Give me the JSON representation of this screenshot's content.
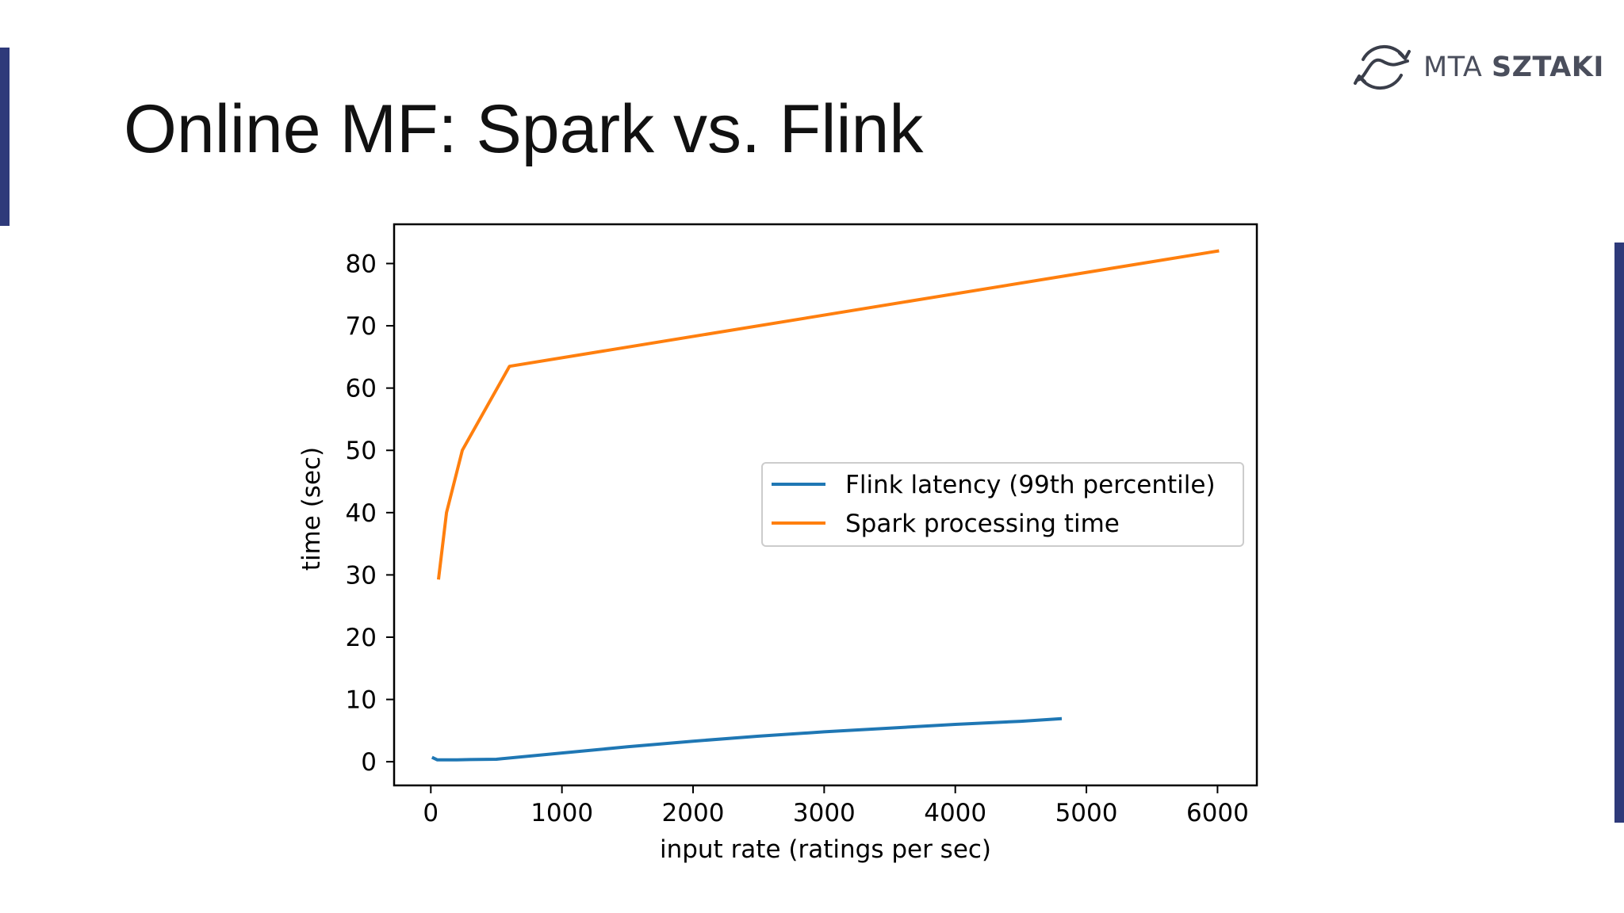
{
  "slide": {
    "title": "Online MF: Spark vs. Flink"
  },
  "logo": {
    "icon": "sztaki-logo-icon",
    "name_light": "MTA",
    "name_bold": "SZTAKI"
  },
  "colors": {
    "accent": "#2e3a7a",
    "flink": "#1f77b4",
    "spark": "#ff7f0e"
  },
  "chart_data": {
    "type": "line",
    "title": "",
    "xlabel": "input rate (ratings per sec)",
    "ylabel": "time (sec)",
    "xlim": [
      -280,
      6300
    ],
    "ylim": [
      -3.8,
      86.3
    ],
    "xticks": [
      0,
      1000,
      2000,
      3000,
      4000,
      5000,
      6000
    ],
    "yticks": [
      0,
      10,
      20,
      30,
      40,
      50,
      60,
      70,
      80
    ],
    "grid": false,
    "legend": "center-right",
    "series": [
      {
        "name": "Flink latency (99th percentile)",
        "color": "#1f77b4",
        "x": [
          20,
          50,
          100,
          200,
          300,
          500,
          1000,
          1500,
          2000,
          2500,
          3000,
          3500,
          4000,
          4500,
          4800
        ],
        "y": [
          0.6,
          0.3,
          0.3,
          0.3,
          0.35,
          0.4,
          1.4,
          2.4,
          3.3,
          4.1,
          4.8,
          5.4,
          6.0,
          6.5,
          6.9
        ]
      },
      {
        "name": "Spark processing time",
        "color": "#ff7f0e",
        "x": [
          60,
          120,
          240,
          600,
          6000
        ],
        "y": [
          29.5,
          40,
          50,
          63.5,
          82
        ]
      }
    ]
  }
}
